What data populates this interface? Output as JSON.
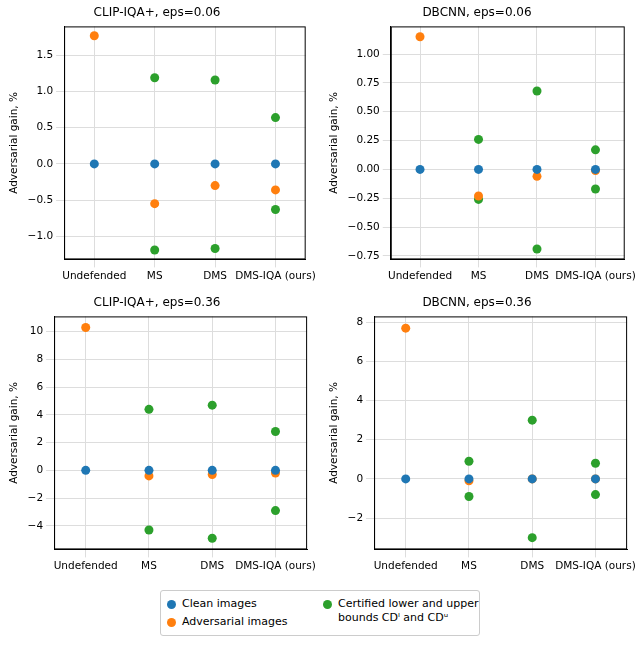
{
  "chart_data": [
    {
      "type": "scatter",
      "title": "CLIP-IQA+, eps=0.06",
      "y_label": "Adversarial gain, %",
      "categories": [
        "Undefended",
        "MS",
        "DMS",
        "DMS-IQA (ours)"
      ],
      "ylim": [
        -1.32,
        1.9
      ],
      "yticks": [
        {
          "value": -1,
          "label": "−1.0"
        },
        {
          "value": -0.5,
          "label": "−0.5"
        },
        {
          "value": 0,
          "label": "0.0"
        },
        {
          "value": 0.5,
          "label": "0.5"
        },
        {
          "value": 1,
          "label": "1.0"
        },
        {
          "value": 1.5,
          "label": "1.5"
        }
      ],
      "grid": true,
      "legend": "bottom",
      "series": [
        {
          "name": "Clean images",
          "color": "#1f77b4",
          "values": [
            0,
            0,
            0,
            0
          ]
        },
        {
          "name": "Adversarial images",
          "color": "#ff7f0e",
          "values": [
            1.77,
            -0.55,
            -0.3,
            -0.36
          ]
        },
        {
          "name": "Certified lower and upper bounds CDˡ and CDᵘ",
          "color": "#2ca02c",
          "values": [
            null,
            [
              -1.19,
              1.19
            ],
            [
              -1.17,
              1.16
            ],
            [
              -0.63,
              0.64
            ]
          ]
        }
      ]
    },
    {
      "type": "scatter",
      "title": "DBCNN, eps=0.06",
      "y_label": "Adversarial gain, %",
      "categories": [
        "Undefended",
        "MS",
        "DMS",
        "DMS-IQA (ours)"
      ],
      "ylim": [
        -0.78,
        1.24
      ],
      "yticks": [
        {
          "value": -0.75,
          "label": "−0.75"
        },
        {
          "value": -0.5,
          "label": "−0.50"
        },
        {
          "value": -0.25,
          "label": "−0.25"
        },
        {
          "value": 0,
          "label": "0.00"
        },
        {
          "value": 0.25,
          "label": "0.25"
        },
        {
          "value": 0.5,
          "label": "0.50"
        },
        {
          "value": 0.75,
          "label": "0.75"
        },
        {
          "value": 1,
          "label": "1.00"
        }
      ],
      "grid": true,
      "legend": "bottom",
      "series": [
        {
          "name": "Clean images",
          "color": "#1f77b4",
          "values": [
            0,
            0,
            0,
            0
          ]
        },
        {
          "name": "Adversarial images",
          "color": "#ff7f0e",
          "values": [
            1.15,
            -0.23,
            -0.06,
            -0.01
          ]
        },
        {
          "name": "Certified lower and upper bounds CDˡ and CDᵘ",
          "color": "#2ca02c",
          "values": [
            null,
            [
              -0.26,
              0.26
            ],
            [
              -0.69,
              0.68
            ],
            [
              -0.17,
              0.17
            ]
          ]
        }
      ]
    },
    {
      "type": "scatter",
      "title": "CLIP-IQA+, eps=0.36",
      "y_label": "Adversarial gain, %",
      "categories": [
        "Undefended",
        "MS",
        "DMS",
        "DMS-IQA (ours)"
      ],
      "ylim": [
        -5.7,
        11.1
      ],
      "yticks": [
        {
          "value": -4,
          "label": "−4"
        },
        {
          "value": -2,
          "label": "−2"
        },
        0,
        2,
        4,
        6,
        8,
        10
      ],
      "grid": true,
      "legend": "bottom",
      "series": [
        {
          "name": "Clean images",
          "color": "#1f77b4",
          "values": [
            0,
            0,
            0,
            0
          ]
        },
        {
          "name": "Adversarial images",
          "color": "#ff7f0e",
          "values": [
            10.3,
            -0.4,
            -0.3,
            -0.2
          ]
        },
        {
          "name": "Certified lower and upper bounds CDˡ and CDᵘ",
          "color": "#2ca02c",
          "values": [
            null,
            [
              -4.3,
              4.4
            ],
            [
              -4.9,
              4.7
            ],
            [
              -2.9,
              2.8
            ]
          ]
        }
      ]
    },
    {
      "type": "scatter",
      "title": "DBCNN, eps=0.36",
      "y_label": "Adversarial gain, %",
      "categories": [
        "Undefended",
        "MS",
        "DMS",
        "DMS-IQA (ours)"
      ],
      "ylim": [
        -3.6,
        8.3
      ],
      "yticks": [
        {
          "value": -2,
          "label": "−2"
        },
        0,
        2,
        4,
        6,
        8
      ],
      "grid": true,
      "legend": "bottom",
      "series": [
        {
          "name": "Clean images",
          "color": "#1f77b4",
          "values": [
            0,
            0,
            0,
            0
          ]
        },
        {
          "name": "Adversarial images",
          "color": "#ff7f0e",
          "values": [
            7.7,
            -0.1,
            0,
            0
          ]
        },
        {
          "name": "Certified lower and upper bounds CDˡ and CDᵘ",
          "color": "#2ca02c",
          "values": [
            null,
            [
              -0.9,
              0.9
            ],
            [
              -3.0,
              3.0
            ],
            [
              -0.8,
              0.8
            ]
          ]
        }
      ]
    }
  ]
}
